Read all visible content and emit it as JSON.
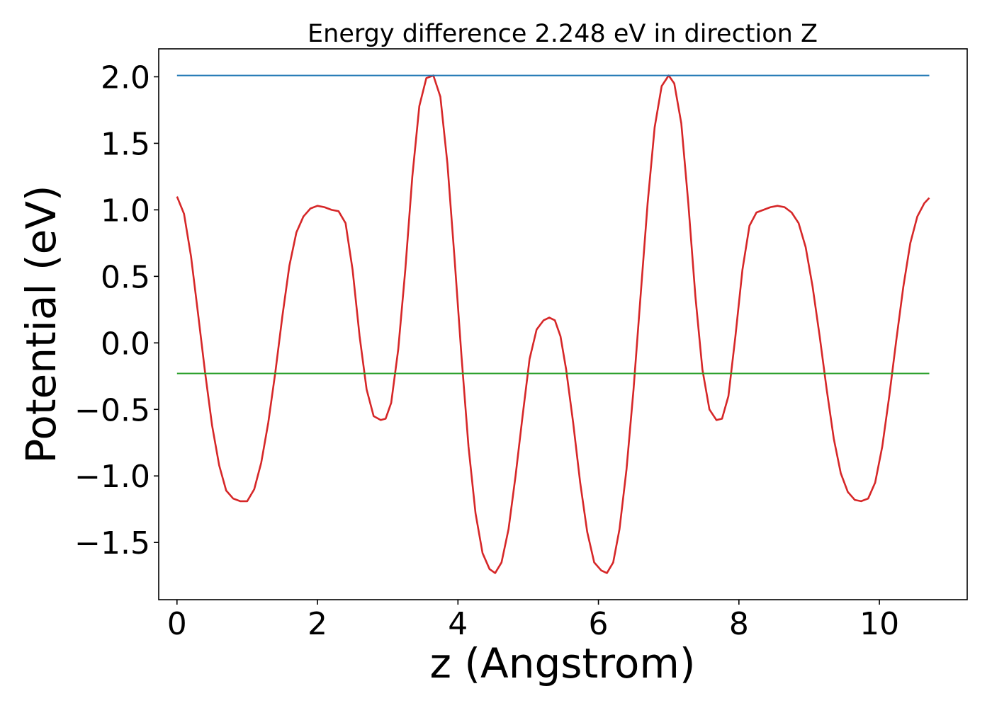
{
  "chart_data": {
    "type": "line",
    "title": "Energy difference 2.248 eV in direction Z",
    "xlabel": "z (Angstrom)",
    "ylabel": "Potential (eV)",
    "xlim": [
      -0.26,
      11.25
    ],
    "ylim": [
      -1.93,
      2.21
    ],
    "xticks": [
      0,
      2,
      4,
      6,
      8,
      10
    ],
    "xtick_labels": [
      "0",
      "2",
      "4",
      "6",
      "8",
      "10"
    ],
    "yticks": [
      -1.5,
      -1.0,
      -0.5,
      0.0,
      0.5,
      1.0,
      1.5,
      2.0
    ],
    "ytick_labels": [
      "−1.5",
      "−1.0",
      "−0.5",
      "0.0",
      "0.5",
      "1.0",
      "1.5",
      "2.0"
    ],
    "grid": false,
    "legend": "none",
    "series": [
      {
        "color": "#d62728",
        "x": [
          0.0,
          0.1,
          0.2,
          0.3,
          0.4,
          0.5,
          0.6,
          0.7,
          0.8,
          0.9,
          1.0,
          1.1,
          1.2,
          1.3,
          1.4,
          1.5,
          1.6,
          1.7,
          1.8,
          1.9,
          2.0,
          2.1,
          2.2,
          2.3,
          2.4,
          2.5,
          2.6,
          2.7,
          2.8,
          2.9,
          2.97,
          3.05,
          3.15,
          3.25,
          3.35,
          3.45,
          3.55,
          3.65,
          3.75,
          3.85,
          3.95,
          4.05,
          4.15,
          4.25,
          4.35,
          4.45,
          4.53,
          4.62,
          4.72,
          4.82,
          4.92,
          5.02,
          5.12,
          5.22,
          5.3,
          5.38,
          5.46,
          5.54,
          5.64,
          5.74,
          5.84,
          5.94,
          6.04,
          6.12,
          6.21,
          6.3,
          6.4,
          6.5,
          6.6,
          6.7,
          6.8,
          6.9,
          7.0,
          7.08,
          7.18,
          7.28,
          7.38,
          7.48,
          7.58,
          7.68,
          7.76,
          7.85,
          7.95,
          8.05,
          8.15,
          8.25,
          8.35,
          8.45,
          8.55,
          8.65,
          8.75,
          8.85,
          8.95,
          9.05,
          9.15,
          9.25,
          9.35,
          9.45,
          9.55,
          9.65,
          9.74,
          9.84,
          9.94,
          10.04,
          10.14,
          10.24,
          10.34,
          10.44,
          10.54,
          10.64,
          10.71
        ],
        "y": [
          1.1,
          0.97,
          0.65,
          0.22,
          -0.22,
          -0.62,
          -0.92,
          -1.11,
          -1.17,
          -1.19,
          -1.19,
          -1.1,
          -0.9,
          -0.6,
          -0.22,
          0.2,
          0.58,
          0.83,
          0.95,
          1.01,
          1.03,
          1.02,
          1.0,
          0.99,
          0.9,
          0.55,
          0.05,
          -0.35,
          -0.55,
          -0.58,
          -0.57,
          -0.45,
          -0.05,
          0.55,
          1.25,
          1.78,
          1.99,
          2.01,
          1.85,
          1.35,
          0.65,
          -0.1,
          -0.78,
          -1.28,
          -1.58,
          -1.7,
          -1.73,
          -1.65,
          -1.4,
          -1.0,
          -0.55,
          -0.12,
          0.1,
          0.17,
          0.19,
          0.17,
          0.05,
          -0.2,
          -0.6,
          -1.05,
          -1.42,
          -1.65,
          -1.71,
          -1.73,
          -1.65,
          -1.4,
          -0.95,
          -0.35,
          0.35,
          1.05,
          1.62,
          1.93,
          2.01,
          1.95,
          1.65,
          1.05,
          0.35,
          -0.2,
          -0.5,
          -0.58,
          -0.57,
          -0.4,
          0.05,
          0.55,
          0.88,
          0.98,
          1.0,
          1.02,
          1.03,
          1.02,
          0.98,
          0.9,
          0.72,
          0.42,
          0.05,
          -0.35,
          -0.72,
          -0.98,
          -1.12,
          -1.18,
          -1.19,
          -1.17,
          -1.05,
          -0.78,
          -0.4,
          0.02,
          0.42,
          0.75,
          0.95,
          1.05,
          1.09
        ]
      },
      {
        "color": "#1f77b4",
        "x": [
          0.0,
          10.71
        ],
        "y": [
          2.01,
          2.01
        ]
      },
      {
        "color": "#2ca02c",
        "x": [
          0.0,
          10.71
        ],
        "y": [
          -0.23,
          -0.23
        ]
      }
    ]
  }
}
